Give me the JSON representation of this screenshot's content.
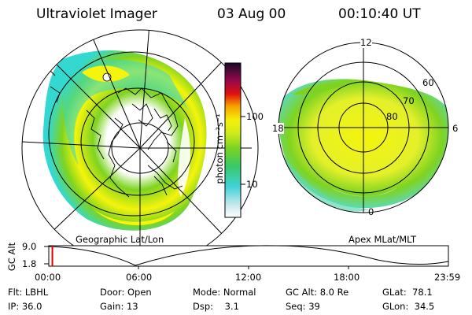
{
  "header": {
    "title": "Ultraviolet Imager",
    "date": "03 Aug 00",
    "time": "00:10:40 UT"
  },
  "colorbar": {
    "label": "photon cm⁻²s⁻¹",
    "ticks": [
      "100",
      "10"
    ]
  },
  "left_panel": {
    "caption": "Geographic Lat/Lon"
  },
  "right_panel": {
    "caption": "Apex MLat/MLT",
    "mlt_labels": {
      "top": "12",
      "left": "18",
      "right": "6",
      "bottom": "0"
    },
    "lat_labels": [
      "60",
      "70",
      "80"
    ]
  },
  "gc_alt_plot": {
    "ylabel": "GC Alt",
    "yticks": [
      "9.0",
      "1.8"
    ],
    "xticks": [
      "00:00",
      "06:00",
      "12:00",
      "18:00",
      "23:59"
    ],
    "current_time_fraction": 0.007
  },
  "info": {
    "flt": "Flt: LBHL",
    "ip": "IP: 36.0",
    "door": "Door: Open",
    "gain": "Gain: 13",
    "mode": "Mode: Normal",
    "dsp": "Dsp:    3.1",
    "gc_alt": "GC Alt: 8.0 Re",
    "seq": "Seq: 39",
    "glat": "GLat:  78.1",
    "glon": "GLon:  34.5"
  },
  "colors": {
    "green": "#7ed321",
    "yellow": "#f4f40c",
    "cyan": "#33d9d0",
    "accent_red": "#e00000"
  }
}
